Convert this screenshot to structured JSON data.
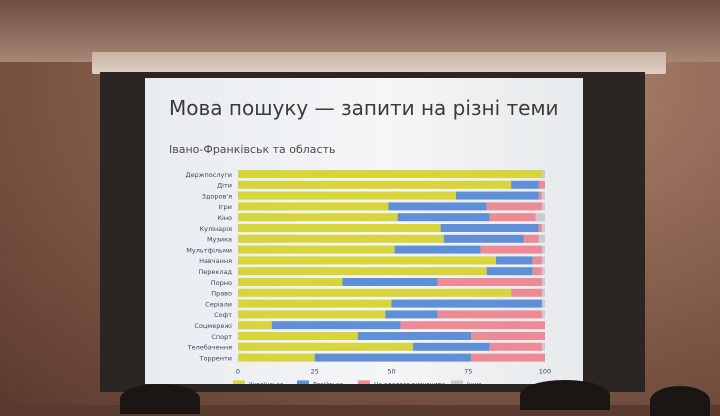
{
  "slide": {
    "title": "Мова пошуку — запити на різні теми",
    "subtitle": "Івано-Франківськ та область"
  },
  "colors": {
    "ukrainian": "#d8d43b",
    "russian": "#5f8fd6",
    "undetermined": "#ec8a95",
    "other": "#c8ccd0"
  },
  "chart_data": {
    "type": "bar",
    "orientation": "horizontal",
    "stacked": true,
    "categories": [
      "Держпослуги",
      "Діти",
      "Здоров'я",
      "Ігри",
      "Кіно",
      "Кулінарія",
      "Музика",
      "Мультфільми",
      "Навчання",
      "Переклад",
      "Порно",
      "Право",
      "Серіали",
      "Софт",
      "Соцмережі",
      "Спорт",
      "Телебачення",
      "Торренти"
    ],
    "series": [
      {
        "name": "Українська",
        "key": "ukrainian",
        "values": [
          99,
          89,
          71,
          49,
          52,
          66,
          67,
          51,
          84,
          81,
          34,
          89,
          50,
          48,
          11,
          39,
          57,
          25
        ]
      },
      {
        "name": "Російська",
        "key": "russian",
        "values": [
          0,
          9,
          27,
          32,
          30,
          32,
          26,
          28,
          12,
          15,
          31,
          0,
          49,
          17,
          42,
          37,
          25,
          51
        ]
      },
      {
        "name": "Не вдалося визначити",
        "key": "undetermined",
        "values": [
          0,
          2,
          1,
          18,
          15,
          1,
          5,
          20,
          3,
          3,
          34,
          10,
          0,
          34,
          47,
          24,
          17,
          24
        ]
      },
      {
        "name": "Інша",
        "key": "other",
        "values": [
          1,
          0,
          1,
          1,
          3,
          1,
          2,
          1,
          1,
          1,
          1,
          1,
          1,
          1,
          0,
          0,
          1,
          0
        ]
      }
    ],
    "xlim": [
      0,
      100
    ],
    "xticks": [
      "0",
      "25",
      "50",
      "75",
      "100"
    ],
    "legend_position": "bottom",
    "grid": false
  }
}
